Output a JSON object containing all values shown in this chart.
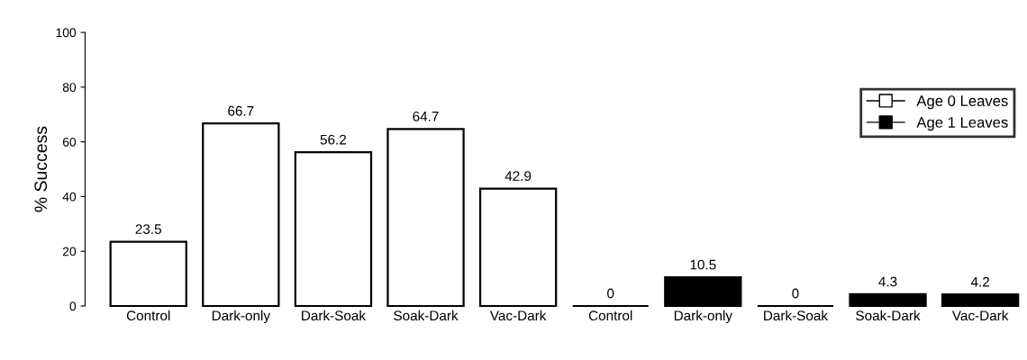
{
  "chart_data": {
    "type": "bar",
    "ylabel": "% Success",
    "categories": [
      "Control",
      "Dark-only",
      "Dark-Soak",
      "Soak-Dark",
      "Vac-Dark",
      "Control",
      "Dark-only",
      "Dark-Soak",
      "Soak-Dark",
      "Vac-Dark"
    ],
    "series": [
      {
        "name": "Age 0 Leaves",
        "color": "#ffffff",
        "values": [
          23.5,
          66.7,
          56.2,
          64.7,
          42.9,
          null,
          null,
          null,
          null,
          null
        ]
      },
      {
        "name": "Age 1 Leaves",
        "color": "#000000",
        "values": [
          null,
          null,
          null,
          null,
          null,
          0,
          10.5,
          0,
          4.3,
          4.2
        ]
      }
    ],
    "ylim": [
      0,
      100
    ],
    "yticks": [
      0,
      20,
      40,
      60,
      80,
      100
    ],
    "data_labels": true,
    "legend": "top right",
    "grid": false
  }
}
